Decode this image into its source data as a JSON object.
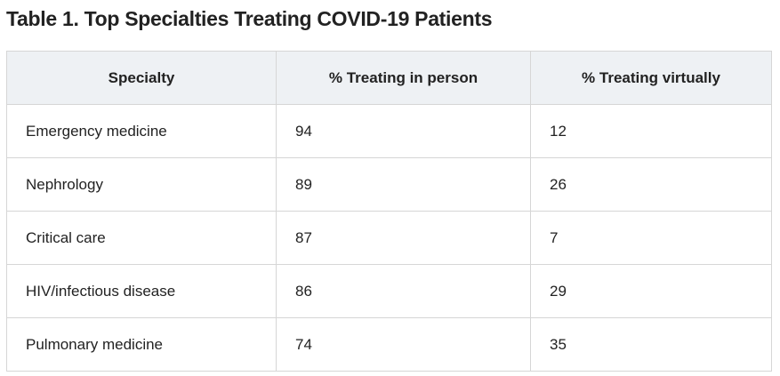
{
  "title": "Table 1. Top Specialties Treating COVID-19 Patients",
  "table": {
    "header": [
      "Specialty",
      "% Treating in person",
      "% Treating virtually"
    ],
    "rows": [
      [
        "Emergency medicine",
        94,
        12
      ],
      [
        "Nephrology",
        89,
        26
      ],
      [
        "Critical care",
        87,
        7
      ],
      [
        "HIV/infectious disease",
        86,
        29
      ],
      [
        "Pulmonary medicine",
        74,
        35
      ]
    ]
  }
}
